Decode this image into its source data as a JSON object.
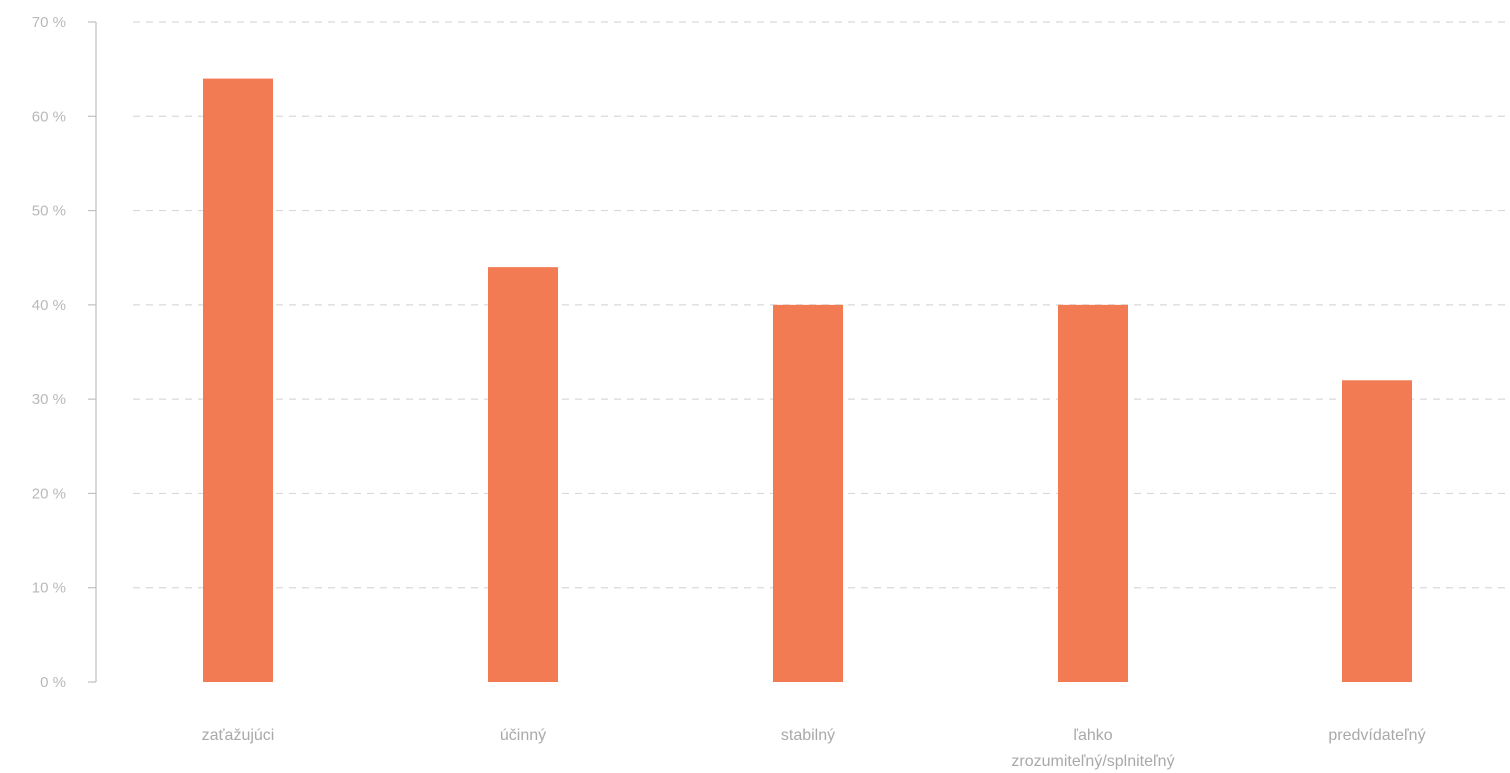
{
  "chart_data": {
    "type": "bar",
    "title": "",
    "xlabel": "",
    "ylabel": "",
    "categories": [
      [
        "zaťažujúci"
      ],
      [
        "účinný"
      ],
      [
        "stabilný"
      ],
      [
        "ľahko",
        "zrozumiteľný/splniteľný"
      ],
      [
        "predvídateľný"
      ]
    ],
    "values": [
      64,
      44,
      40,
      40,
      32
    ],
    "ylim": [
      0,
      70
    ],
    "yticks": [
      0,
      10,
      20,
      30,
      40,
      50,
      60,
      70
    ],
    "tick_suffix": " %",
    "grid": true,
    "colors": {
      "bar": "#f37b53",
      "grid": "#d9d9d9",
      "axis": "#bfbfbf",
      "tick_text": "#b9b9b9",
      "category_text": "#a9a9a9"
    }
  }
}
